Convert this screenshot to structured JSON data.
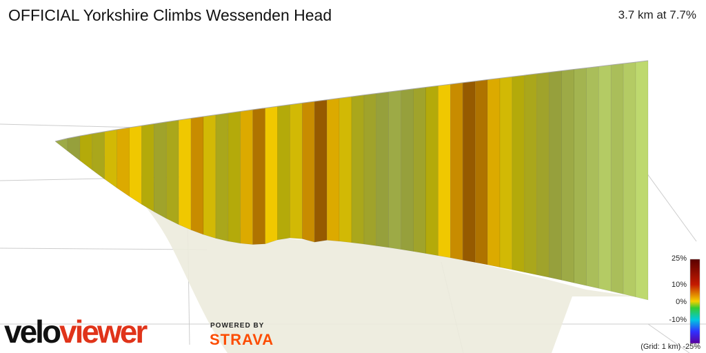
{
  "header": {
    "title": "OFFICIAL Yorkshire Climbs Wessenden Head",
    "summary": "3.7 km at 7.7%"
  },
  "branding": {
    "logo_part1": "velo",
    "logo_part2": "viewer",
    "powered_by": "POWERED BY",
    "strava": "STRAVA"
  },
  "legend": {
    "grid_label": "(Grid: 1 km)",
    "ticks": [
      "25%",
      "10%",
      "0%",
      "-10%",
      "-25%"
    ],
    "tick_values": [
      25,
      10,
      0,
      -10,
      -25
    ],
    "colors": [
      "#5a0000",
      "#c41a00",
      "#f5d000",
      "#33cc33",
      "#00c8e0",
      "#3030ff",
      "#5a00a0"
    ]
  },
  "chart_data": {
    "type": "area",
    "title": "OFFICIAL Yorkshire Climbs Wessenden Head",
    "distance_km": 3.7,
    "average_gradient_pct": 7.7,
    "segment_gradients_pct": [
      5,
      6,
      9,
      8,
      10,
      12,
      11,
      9,
      7,
      8,
      11,
      13,
      10,
      8,
      9,
      12,
      14,
      11,
      9,
      10,
      13,
      15,
      12,
      10,
      8,
      7,
      6,
      5,
      6,
      7,
      9,
      11,
      13,
      15,
      14,
      12,
      10,
      9,
      8,
      7,
      6,
      5,
      4,
      3,
      2,
      3,
      2,
      1
    ],
    "colorscale_range": [
      -25,
      25
    ],
    "grid": true
  }
}
